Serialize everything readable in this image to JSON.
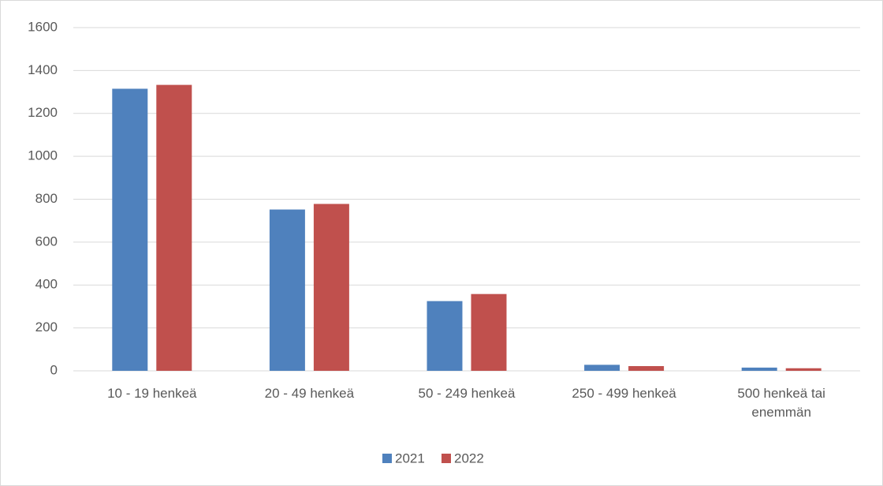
{
  "chart_data": {
    "type": "bar",
    "categories": [
      "10 - 19 henkeä",
      "20 - 49 henkeä",
      "50 - 249 henkeä",
      "250 - 499 henkeä",
      "500 henkeä tai enemmän"
    ],
    "series": [
      {
        "name": "2021",
        "color": "#4f81bd",
        "values": [
          1315,
          752,
          325,
          28,
          15
        ]
      },
      {
        "name": "2022",
        "color": "#c0504d",
        "values": [
          1333,
          778,
          358,
          22,
          12
        ]
      }
    ],
    "ylim": [
      0,
      1600
    ],
    "yticks": [
      0,
      200,
      400,
      600,
      800,
      1000,
      1200,
      1400,
      1600
    ],
    "grid": true,
    "legend": "bottom"
  }
}
